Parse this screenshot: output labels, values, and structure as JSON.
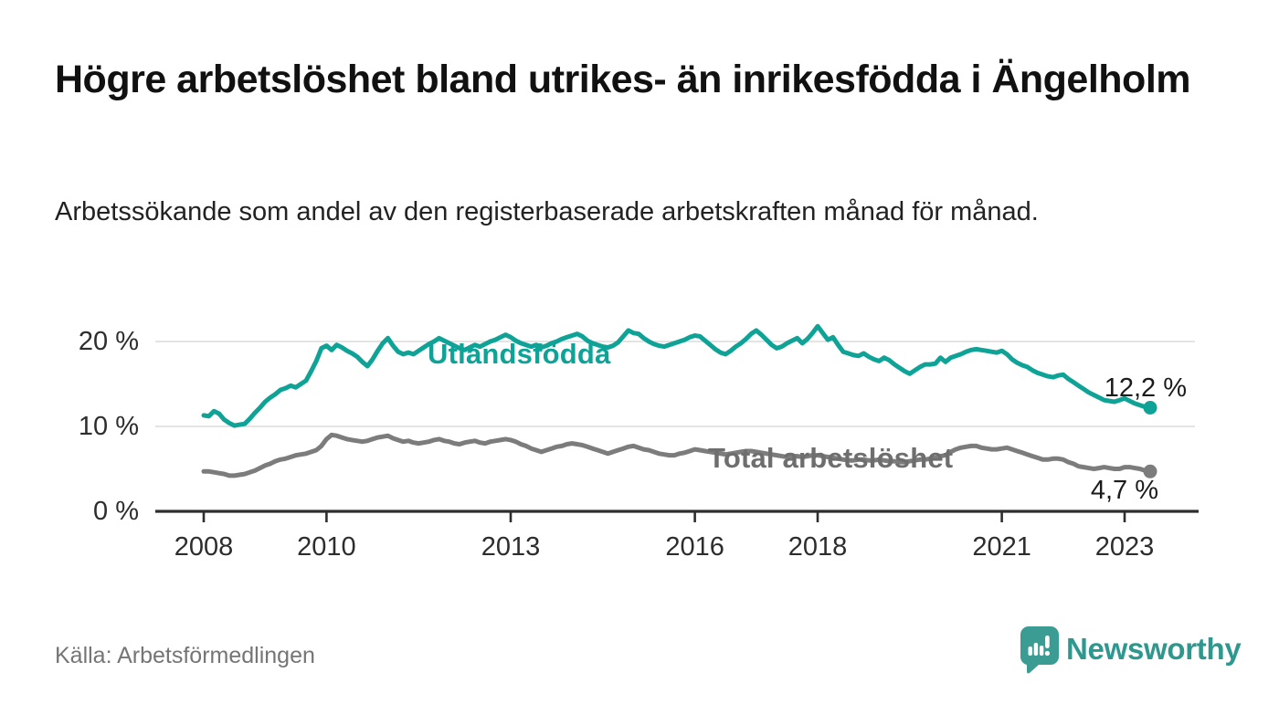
{
  "header": {
    "title": "Högre arbetslöshet bland utrikes- än inrikesfödda i Ängelholm",
    "subtitle": "Arbetssökande som andel av den registerbaserade arbetskraften månad för månad."
  },
  "footer": {
    "source": "Källa: Arbetsförmedlingen",
    "brand": "Newsworthy"
  },
  "colors": {
    "accent_teal": "#0ea396",
    "line_gray": "#7c7c7c",
    "label_gray": "#6e6e6e",
    "grid": "#dcdcdc",
    "axis": "#2e2e2e",
    "value_text": "#1b1b1b",
    "tick_text": "#2d2d2d",
    "source_text": "#757575",
    "brand_teal": "#2f988e"
  },
  "chart_data": {
    "type": "line",
    "x_start": "2008-01",
    "x_end": "2023-06",
    "x_interval": "month",
    "ylim": [
      0,
      22.5
    ],
    "grid": "horizontal",
    "legend_position": "inline-labels",
    "yticks": [
      {
        "label": "0 %",
        "value": 0
      },
      {
        "label": "10 %",
        "value": 10
      },
      {
        "label": "20 %",
        "value": 20
      }
    ],
    "xticks": [
      {
        "label": "2008",
        "month": 0
      },
      {
        "label": "2010",
        "month": 24
      },
      {
        "label": "2013",
        "month": 60
      },
      {
        "label": "2016",
        "month": 96
      },
      {
        "label": "2018",
        "month": 120
      },
      {
        "label": "2021",
        "month": 156
      },
      {
        "label": "2023",
        "month": 180
      }
    ],
    "series": [
      {
        "name": "Utlandsfödda",
        "color": "#0ea396",
        "end_label": "12,2 %",
        "end_value": 12.2,
        "values": [
          11.3,
          11.2,
          11.8,
          11.5,
          10.8,
          10.4,
          10.1,
          10.2,
          10.3,
          10.9,
          11.6,
          12.2,
          12.9,
          13.4,
          13.8,
          14.3,
          14.5,
          14.8,
          14.6,
          15.0,
          15.4,
          16.5,
          17.7,
          19.2,
          19.5,
          19.0,
          19.6,
          19.3,
          18.9,
          18.6,
          18.2,
          17.6,
          17.1,
          17.9,
          18.9,
          19.8,
          20.4,
          19.5,
          18.8,
          18.5,
          18.7,
          18.5,
          18.9,
          19.3,
          19.7,
          20.0,
          20.4,
          20.1,
          19.8,
          19.5,
          19.2,
          19.0,
          19.3,
          19.6,
          19.4,
          19.7,
          20.0,
          20.2,
          20.5,
          20.8,
          20.5,
          20.1,
          19.8,
          19.6,
          19.4,
          19.6,
          19.3,
          19.5,
          19.8,
          20.0,
          20.3,
          20.5,
          20.7,
          20.9,
          20.6,
          20.1,
          19.8,
          19.6,
          19.4,
          19.3,
          19.5,
          19.9,
          20.6,
          21.3,
          21.0,
          20.9,
          20.4,
          20.0,
          19.7,
          19.5,
          19.4,
          19.6,
          19.8,
          20.0,
          20.2,
          20.5,
          20.7,
          20.6,
          20.1,
          19.6,
          19.1,
          18.7,
          18.5,
          18.9,
          19.4,
          19.8,
          20.3,
          20.9,
          21.3,
          20.8,
          20.2,
          19.6,
          19.2,
          19.4,
          19.8,
          20.1,
          20.4,
          19.8,
          20.3,
          21.0,
          21.8,
          21.0,
          20.2,
          20.5,
          19.6,
          18.8,
          18.6,
          18.4,
          18.3,
          18.6,
          18.2,
          17.9,
          17.7,
          18.1,
          17.8,
          17.3,
          16.9,
          16.5,
          16.2,
          16.6,
          17.0,
          17.3,
          17.3,
          17.4,
          18.1,
          17.6,
          18.1,
          18.3,
          18.5,
          18.8,
          19.0,
          19.1,
          19.0,
          18.9,
          18.8,
          18.7,
          18.9,
          18.5,
          17.9,
          17.5,
          17.2,
          17.0,
          16.6,
          16.3,
          16.1,
          15.9,
          15.8,
          16.0,
          16.1,
          15.6,
          15.2,
          14.8,
          14.4,
          14.0,
          13.7,
          13.4,
          13.1,
          13.0,
          12.9,
          13.1,
          13.3,
          13.0,
          12.7,
          12.5,
          12.3,
          12.2
        ]
      },
      {
        "name": "Total arbetslöshet",
        "color": "#7c7c7c",
        "end_label": "4,7 %",
        "end_value": 4.7,
        "values": [
          4.7,
          4.7,
          4.6,
          4.5,
          4.4,
          4.2,
          4.2,
          4.3,
          4.4,
          4.6,
          4.8,
          5.1,
          5.4,
          5.6,
          5.9,
          6.1,
          6.2,
          6.4,
          6.6,
          6.7,
          6.8,
          7.0,
          7.2,
          7.7,
          8.5,
          9.0,
          8.9,
          8.7,
          8.5,
          8.4,
          8.3,
          8.2,
          8.3,
          8.5,
          8.7,
          8.8,
          8.9,
          8.6,
          8.4,
          8.2,
          8.3,
          8.1,
          8.0,
          8.1,
          8.2,
          8.4,
          8.5,
          8.3,
          8.2,
          8.0,
          7.9,
          8.1,
          8.2,
          8.3,
          8.1,
          8.0,
          8.2,
          8.3,
          8.4,
          8.5,
          8.4,
          8.2,
          7.9,
          7.7,
          7.4,
          7.2,
          7.0,
          7.2,
          7.4,
          7.6,
          7.7,
          7.9,
          8.0,
          7.9,
          7.8,
          7.6,
          7.4,
          7.2,
          7.0,
          6.8,
          7.0,
          7.2,
          7.4,
          7.6,
          7.7,
          7.5,
          7.3,
          7.2,
          7.0,
          6.8,
          6.7,
          6.6,
          6.6,
          6.8,
          6.9,
          7.1,
          7.3,
          7.2,
          7.1,
          7.0,
          6.9,
          6.8,
          6.7,
          6.8,
          6.9,
          7.0,
          7.1,
          7.1,
          7.0,
          6.9,
          6.8,
          6.7,
          6.6,
          6.5,
          6.4,
          6.5,
          6.5,
          6.4,
          6.5,
          6.6,
          6.6,
          6.5,
          6.4,
          6.3,
          6.2,
          6.1,
          6.0,
          6.0,
          6.1,
          6.1,
          6.0,
          6.0,
          6.1,
          6.0,
          5.9,
          5.9,
          5.8,
          5.8,
          5.9,
          6.0,
          6.1,
          6.1,
          6.2,
          6.3,
          6.5,
          6.6,
          7.0,
          7.3,
          7.5,
          7.6,
          7.7,
          7.7,
          7.5,
          7.4,
          7.3,
          7.3,
          7.4,
          7.5,
          7.3,
          7.1,
          6.9,
          6.7,
          6.5,
          6.3,
          6.1,
          6.1,
          6.2,
          6.2,
          6.1,
          5.8,
          5.6,
          5.3,
          5.2,
          5.1,
          5.0,
          5.1,
          5.2,
          5.1,
          5.0,
          5.0,
          5.2,
          5.2,
          5.1,
          5.0,
          4.8,
          4.7
        ]
      }
    ]
  }
}
